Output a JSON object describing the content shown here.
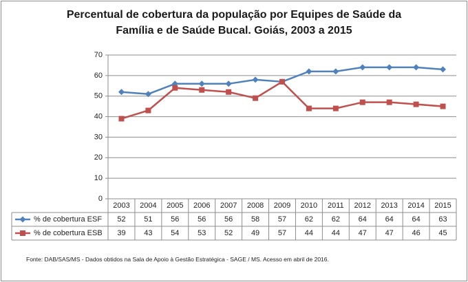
{
  "chart_data": {
    "type": "line",
    "title": {
      "line1": "Percentual de cobertura da população por Equipes de Saúde da",
      "line2": "Família e de Saúde Bucal. Goiás, 2003 a 2015"
    },
    "categories": [
      "2003",
      "2004",
      "2005",
      "2006",
      "2007",
      "2008",
      "2009",
      "2010",
      "2011",
      "2012",
      "2013",
      "2014",
      "2015"
    ],
    "y_ticks": [
      "0",
      "10",
      "20",
      "30",
      "40",
      "50",
      "60",
      "70"
    ],
    "ylim": [
      0,
      70
    ],
    "grid": "horizontal",
    "legend_placement": "data-table-left",
    "series": [
      {
        "name": "% de cobertura ESF",
        "color": "#4f81bd",
        "marker": "diamond",
        "values": [
          52,
          51,
          56,
          56,
          56,
          58,
          57,
          62,
          62,
          64,
          64,
          64,
          63
        ]
      },
      {
        "name": "% de cobertura ESB",
        "color": "#c0504d",
        "marker": "square",
        "values": [
          39,
          43,
          54,
          53,
          52,
          49,
          57,
          44,
          44,
          47,
          47,
          46,
          45
        ]
      }
    ]
  },
  "source": "Fonte:  DAB/SAS/MS - Dados obtidos na Sala de Apoio à Gestão Estratégica - SAGE / MS. Acesso em abril de 2016."
}
